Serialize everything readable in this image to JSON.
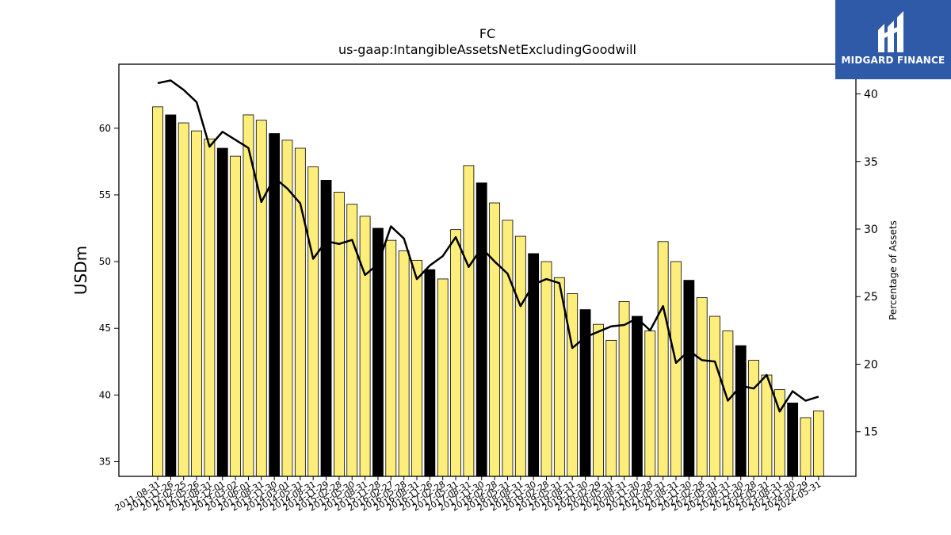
{
  "brand": {
    "name": "MIDGARD FINANCE",
    "background": "#2f5aa8"
  },
  "chart_data": {
    "type": "bar",
    "title": "FC",
    "subtitle": "us-gaap:IntangibleAssetsNetExcludingGoodwill",
    "ylabel": "USDm",
    "y2label": "Percentage of Assets",
    "ylim": [
      33.9,
      64.8
    ],
    "y2lim": [
      11.7,
      42.2
    ],
    "yticks": [
      35,
      40,
      45,
      50,
      55,
      60
    ],
    "y2ticks": [
      15,
      20,
      25,
      30,
      35,
      40
    ],
    "bar_color": "#fdee7c",
    "highlight_color": "#000000",
    "line_color": "#000000",
    "categories": [
      "2011-08-31",
      "2011-11-26",
      "2012-02-25",
      "2012-05-26",
      "2012-08-31",
      "2012-12-01",
      "2013-03-02",
      "2013-06-01",
      "2013-08-31",
      "2013-11-30",
      "2014-03-01",
      "2014-05-31",
      "2014-08-31",
      "2014-11-29",
      "2015-02-28",
      "2015-05-30",
      "2015-08-31",
      "2015-11-28",
      "2016-02-27",
      "2016-05-28",
      "2016-08-31",
      "2016-11-26",
      "2017-02-28",
      "2017-05-31",
      "2017-08-31",
      "2017-11-30",
      "2018-02-28",
      "2018-05-31",
      "2018-08-31",
      "2018-11-30",
      "2019-02-28",
      "2019-05-31",
      "2019-08-31",
      "2019-11-30",
      "2020-02-29",
      "2020-05-31",
      "2020-08-31",
      "2020-11-30",
      "2021-02-28",
      "2021-05-31",
      "2021-08-31",
      "2021-11-30",
      "2022-02-28",
      "2022-05-31",
      "2022-08-31",
      "2022-11-30",
      "2023-02-28",
      "2023-05-31",
      "2023-08-31",
      "2023-11-30",
      "2024-02-29",
      "2024-05-31"
    ],
    "series": [
      {
        "type": "bar",
        "values": [
          61.6,
          61.0,
          60.4,
          59.8,
          59.2,
          58.5,
          57.9,
          61.0,
          60.6,
          59.6,
          59.1,
          58.5,
          57.1,
          56.1,
          55.2,
          54.3,
          53.4,
          52.5,
          51.6,
          50.8,
          50.1,
          49.4,
          48.7,
          52.4,
          57.2,
          55.9,
          54.4,
          53.1,
          51.9,
          50.6,
          50.0,
          48.8,
          47.6,
          46.4,
          45.3,
          44.1,
          47.0,
          45.9,
          44.8,
          51.5,
          50.0,
          48.6,
          47.3,
          45.9,
          44.8,
          43.7,
          42.6,
          41.5,
          40.4,
          39.4,
          38.3,
          38.8
        ],
        "highlight": [
          false,
          true,
          false,
          false,
          false,
          true,
          false,
          false,
          false,
          true,
          false,
          false,
          false,
          true,
          false,
          false,
          false,
          true,
          false,
          false,
          false,
          true,
          false,
          false,
          false,
          true,
          false,
          false,
          false,
          true,
          false,
          false,
          false,
          true,
          false,
          false,
          false,
          true,
          false,
          false,
          false,
          true,
          false,
          false,
          false,
          true,
          false,
          false,
          false,
          true,
          false,
          false
        ]
      },
      {
        "type": "line",
        "axis": "y2",
        "values": [
          40.8,
          41.0,
          40.3,
          39.4,
          36.1,
          37.2,
          36.6,
          36.0,
          32.0,
          33.8,
          33.0,
          31.9,
          27.8,
          29.1,
          28.9,
          29.2,
          26.6,
          27.4,
          30.2,
          29.3,
          26.3,
          27.3,
          28.0,
          29.4,
          27.2,
          28.6,
          27.6,
          26.7,
          24.3,
          25.9,
          26.3,
          26.0,
          21.2,
          22.0,
          22.4,
          22.8,
          22.9,
          23.4,
          22.5,
          24.3,
          20.1,
          21.0,
          20.3,
          20.2,
          17.3,
          18.4,
          18.2,
          19.2,
          16.5,
          18.0,
          17.3,
          17.6
        ]
      }
    ]
  }
}
